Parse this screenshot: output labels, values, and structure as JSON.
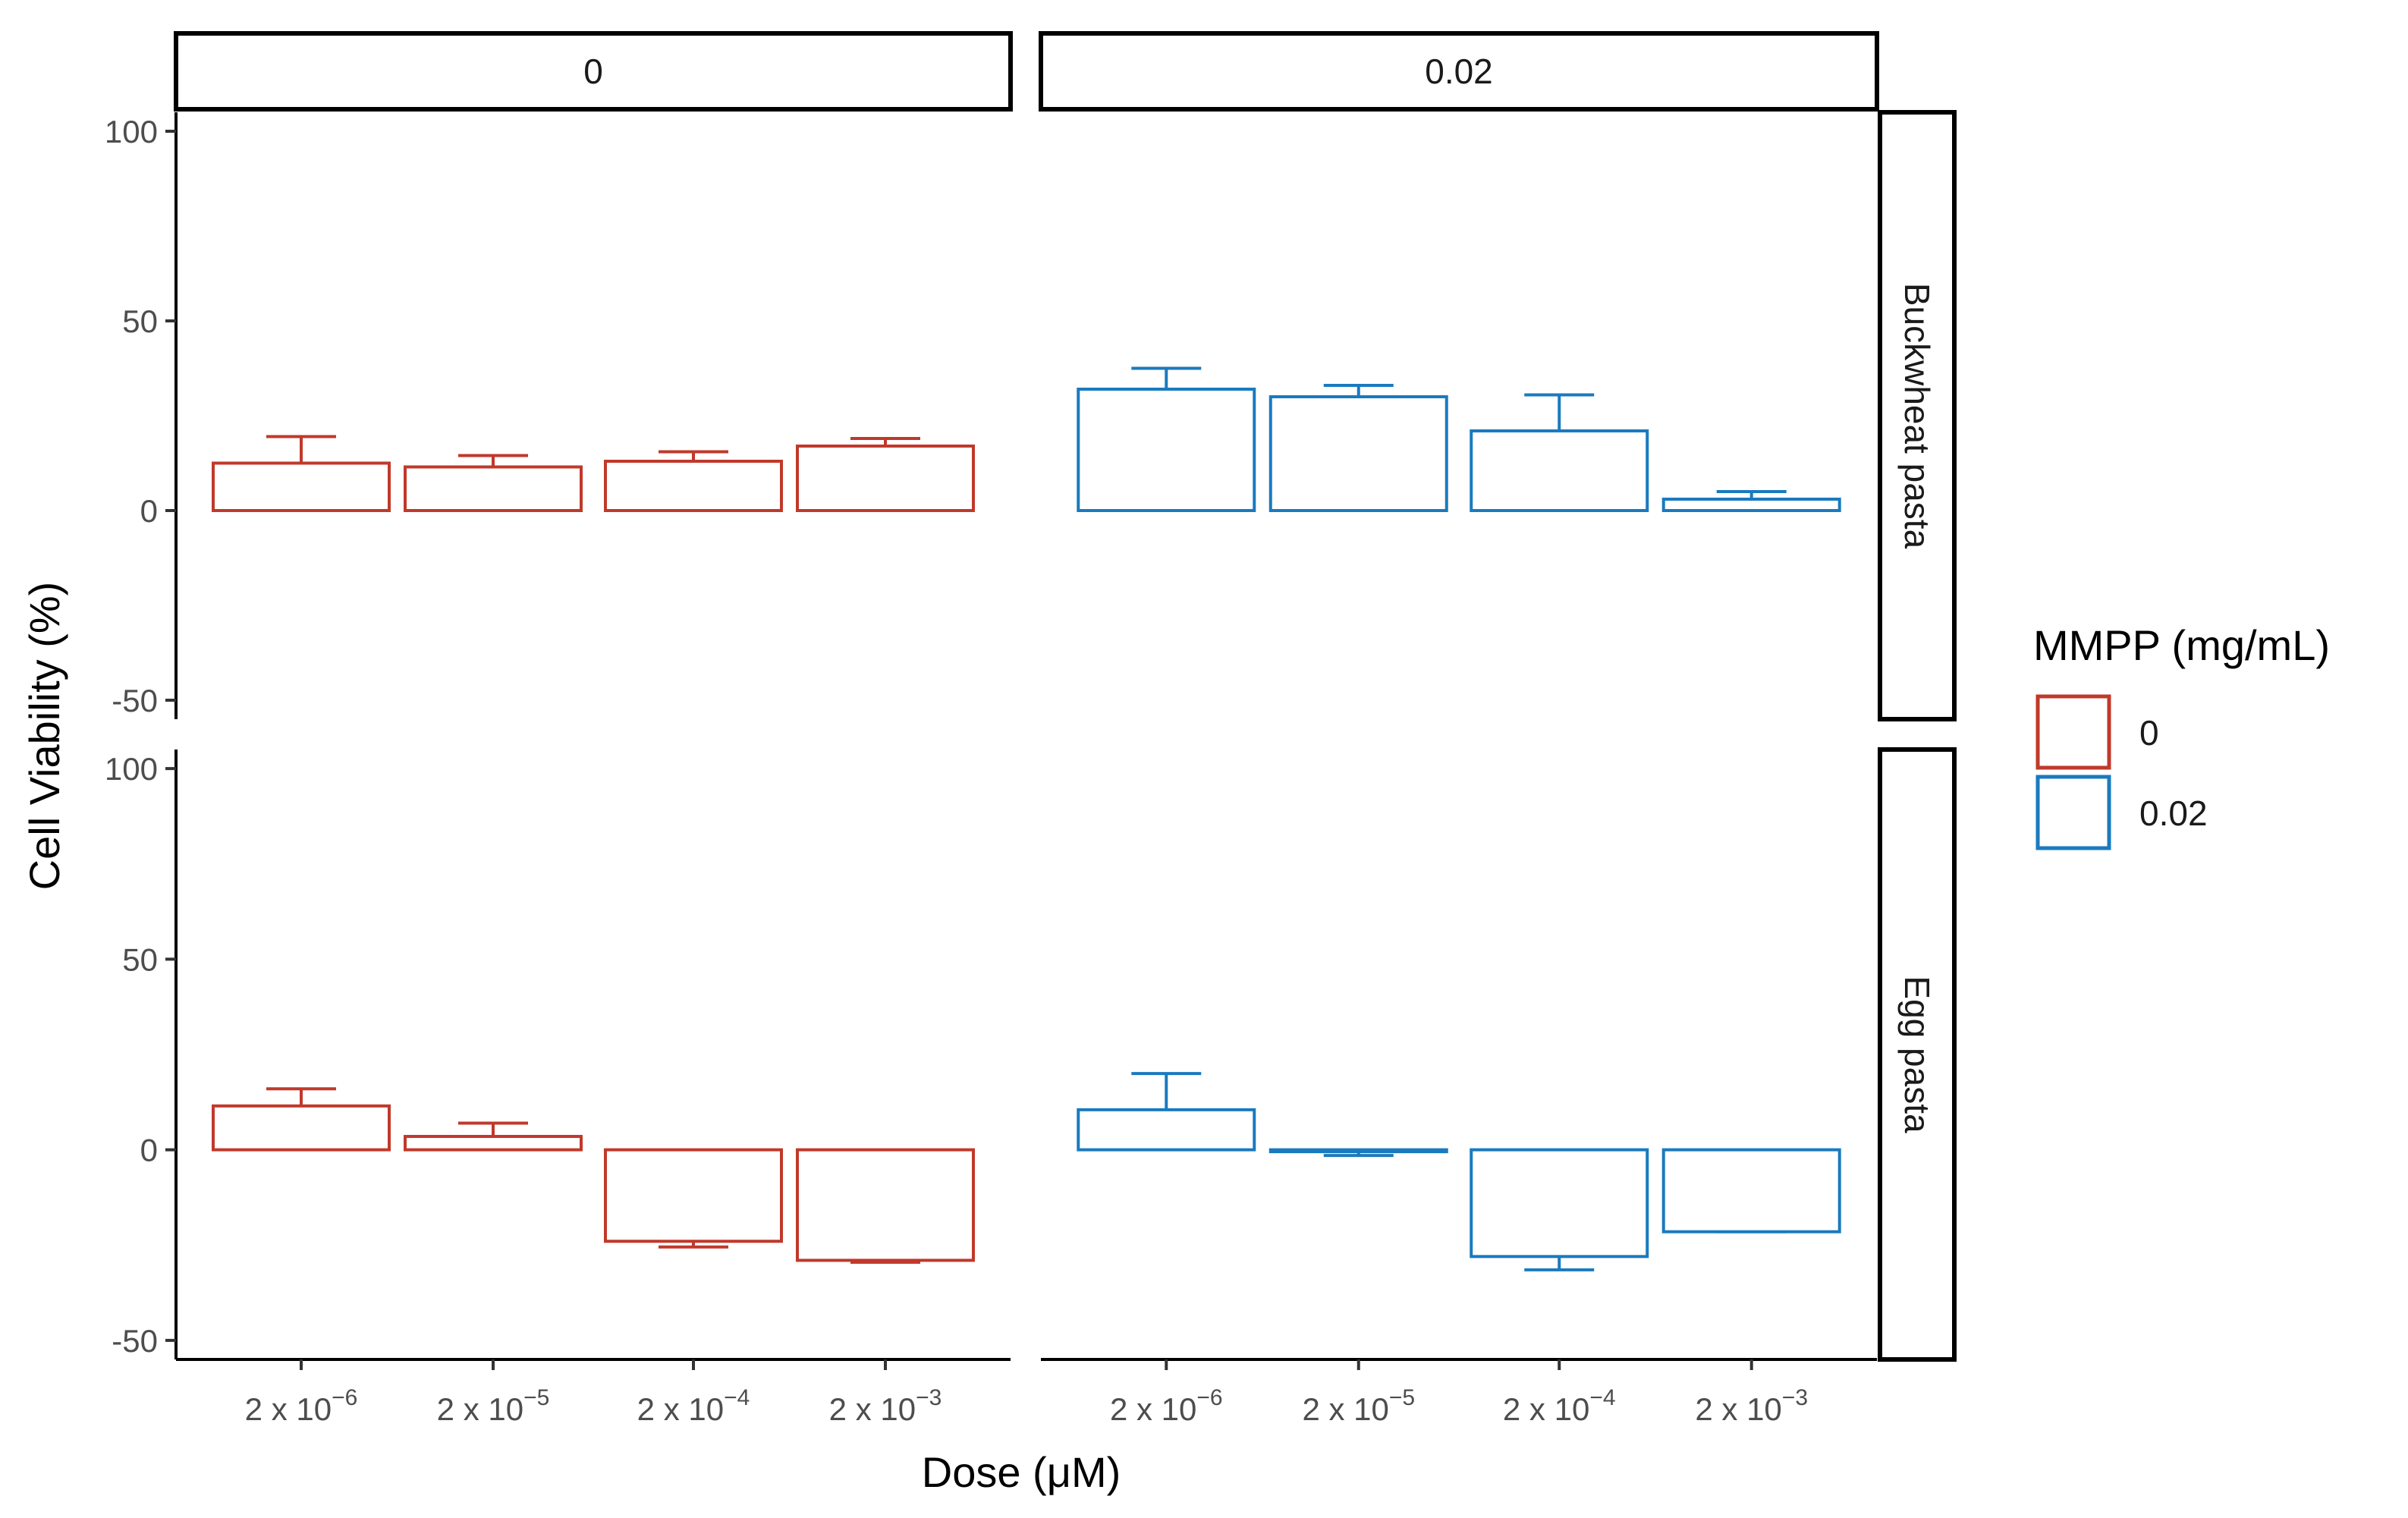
{
  "chart_data": {
    "type": "bar",
    "facet_columns": [
      "0",
      "0.02"
    ],
    "facet_rows": [
      "Buckwheat pasta",
      "Egg pasta"
    ],
    "categories": [
      "2 x 10^-6",
      "2 x 10^-5",
      "2 x 10^-4",
      "2 x 10^-3"
    ],
    "tick_base": "2 x 10",
    "tick_exponents": [
      "−6",
      "−5",
      "−4",
      "−3"
    ],
    "xlabel": "Dose (μM)",
    "ylabel": "Cell Viability (%)",
    "ylim": [
      -55,
      105
    ],
    "yticks": [
      -50,
      0,
      50,
      100
    ],
    "ytick_labels": [
      "-50",
      "0",
      "50",
      "100"
    ],
    "legend": {
      "title": "MMPP (mg/mL)",
      "position": "right",
      "items": [
        {
          "label": "0",
          "color": "#c0392b"
        },
        {
          "label": "0.02",
          "color": "#1a7abf"
        }
      ]
    },
    "series": [
      {
        "column": "0",
        "row": "Buckwheat pasta",
        "color": "#c0392b",
        "values": [
          12.5,
          11.5,
          13,
          17
        ],
        "error_ends": [
          19.5,
          14.5,
          15.5,
          19
        ]
      },
      {
        "column": "0.02",
        "row": "Buckwheat pasta",
        "color": "#1a7abf",
        "values": [
          32,
          30,
          21,
          3
        ],
        "error_ends": [
          37.5,
          33,
          30.5,
          5
        ]
      },
      {
        "column": "0",
        "row": "Egg pasta",
        "color": "#c0392b",
        "values": [
          11.5,
          3.5,
          -24,
          -29
        ],
        "error_ends": [
          16,
          7,
          -25.5,
          -29.5
        ]
      },
      {
        "column": "0.02",
        "row": "Egg pasta",
        "color": "#1a7abf",
        "values": [
          10.5,
          -0.5,
          -28,
          -21.5
        ],
        "error_ends": [
          20,
          -1.5,
          -31.5,
          -21.5
        ]
      }
    ]
  }
}
